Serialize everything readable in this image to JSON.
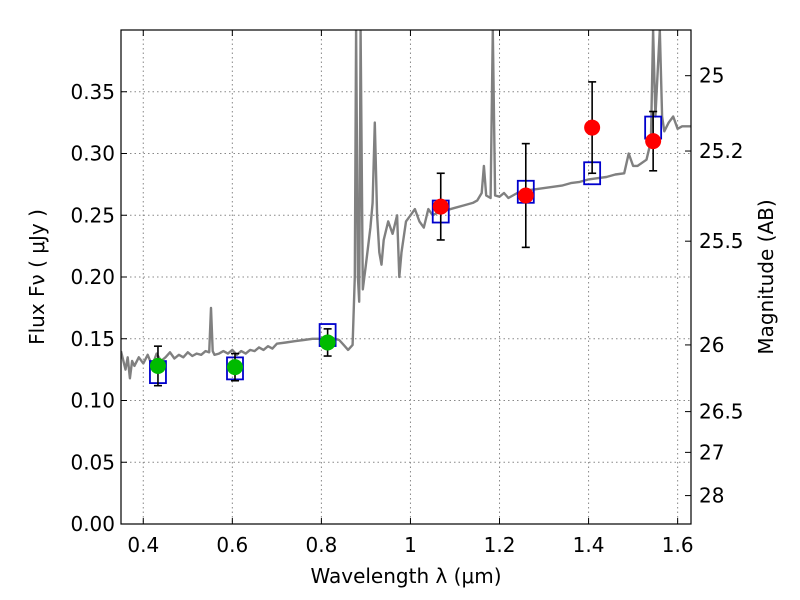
{
  "chart_data": {
    "type": "scatter",
    "xlabel": "Wavelength  λ (μm)",
    "ylabel_left": "Flux  Fν  ( μJy )",
    "ylabel_right": "Magnitude (AB)",
    "xlim": [
      0.35,
      1.63
    ],
    "ylim": [
      0.0,
      0.4
    ],
    "grid": true,
    "x_ticks": [
      0.4,
      0.6,
      0.8,
      1.0,
      1.2,
      1.4,
      1.6
    ],
    "x_tick_labels": [
      "0.4",
      "0.6",
      "0.8",
      "1",
      "1.2",
      "1.4",
      "1.6"
    ],
    "y_ticks": [
      0.0,
      0.05,
      0.1,
      0.15,
      0.2,
      0.25,
      0.3,
      0.35
    ],
    "y_tick_labels": [
      "0.00",
      "0.05",
      "0.10",
      "0.15",
      "0.20",
      "0.25",
      "0.30",
      "0.35"
    ],
    "right_ticks": [
      {
        "label": "25",
        "flux": 0.363
      },
      {
        "label": "25.2",
        "flux": 0.302
      },
      {
        "label": "25.5",
        "flux": 0.229
      },
      {
        "label": "26",
        "flux": 0.145
      },
      {
        "label": "26.5",
        "flux": 0.091
      },
      {
        "label": "27",
        "flux": 0.058
      },
      {
        "label": "28",
        "flux": 0.023
      }
    ],
    "colors": {
      "green": "#00bb00",
      "red": "#ff0000",
      "model_box": "#0000cc",
      "model_spectrum": "#808080",
      "errorbar": "#000000",
      "grid": "#888888"
    },
    "photometry_green": [
      {
        "x": 0.433,
        "y": 0.128,
        "yerr": 0.016
      },
      {
        "x": 0.606,
        "y": 0.127,
        "yerr": 0.011
      },
      {
        "x": 0.814,
        "y": 0.147,
        "yerr": 0.011
      }
    ],
    "photometry_red": [
      {
        "x": 1.068,
        "y": 0.257,
        "yerr": 0.027
      },
      {
        "x": 1.259,
        "y": 0.266,
        "yerr": 0.042
      },
      {
        "x": 1.408,
        "y": 0.321,
        "yerr": 0.037
      },
      {
        "x": 1.545,
        "y": 0.31,
        "yerr": 0.024
      }
    ],
    "model_boxes": [
      {
        "x": 0.433,
        "y": 0.123
      },
      {
        "x": 0.606,
        "y": 0.126
      },
      {
        "x": 0.814,
        "y": 0.153
      },
      {
        "x": 1.068,
        "y": 0.253
      },
      {
        "x": 1.259,
        "y": 0.269
      },
      {
        "x": 1.408,
        "y": 0.284
      },
      {
        "x": 1.545,
        "y": 0.321
      }
    ],
    "model_spectrum": [
      [
        0.35,
        0.14
      ],
      [
        0.36,
        0.125
      ],
      [
        0.365,
        0.135
      ],
      [
        0.37,
        0.118
      ],
      [
        0.375,
        0.132
      ],
      [
        0.38,
        0.128
      ],
      [
        0.39,
        0.135
      ],
      [
        0.4,
        0.13
      ],
      [
        0.41,
        0.137
      ],
      [
        0.42,
        0.128
      ],
      [
        0.43,
        0.138
      ],
      [
        0.44,
        0.132
      ],
      [
        0.45,
        0.135
      ],
      [
        0.46,
        0.139
      ],
      [
        0.47,
        0.134
      ],
      [
        0.48,
        0.137
      ],
      [
        0.49,
        0.135
      ],
      [
        0.5,
        0.139
      ],
      [
        0.51,
        0.136
      ],
      [
        0.52,
        0.138
      ],
      [
        0.53,
        0.137
      ],
      [
        0.54,
        0.14
      ],
      [
        0.548,
        0.139
      ],
      [
        0.552,
        0.175
      ],
      [
        0.556,
        0.14
      ],
      [
        0.56,
        0.137
      ],
      [
        0.57,
        0.138
      ],
      [
        0.58,
        0.14
      ],
      [
        0.59,
        0.138
      ],
      [
        0.6,
        0.141
      ],
      [
        0.61,
        0.137
      ],
      [
        0.62,
        0.14
      ],
      [
        0.63,
        0.138
      ],
      [
        0.64,
        0.141
      ],
      [
        0.65,
        0.14
      ],
      [
        0.66,
        0.143
      ],
      [
        0.67,
        0.141
      ],
      [
        0.68,
        0.144
      ],
      [
        0.69,
        0.142
      ],
      [
        0.7,
        0.146
      ],
      [
        0.72,
        0.147
      ],
      [
        0.74,
        0.148
      ],
      [
        0.76,
        0.149
      ],
      [
        0.78,
        0.15
      ],
      [
        0.8,
        0.15
      ],
      [
        0.82,
        0.151
      ],
      [
        0.84,
        0.149
      ],
      [
        0.85,
        0.145
      ],
      [
        0.86,
        0.141
      ],
      [
        0.87,
        0.145
      ],
      [
        0.875,
        0.2
      ],
      [
        0.878,
        0.4
      ],
      [
        0.882,
        0.2
      ],
      [
        0.885,
        0.18
      ],
      [
        0.888,
        0.4
      ],
      [
        0.893,
        0.19
      ],
      [
        0.9,
        0.21
      ],
      [
        0.91,
        0.24
      ],
      [
        0.915,
        0.26
      ],
      [
        0.92,
        0.325
      ],
      [
        0.925,
        0.25
      ],
      [
        0.93,
        0.22
      ],
      [
        0.935,
        0.21
      ],
      [
        0.94,
        0.23
      ],
      [
        0.95,
        0.245
      ],
      [
        0.96,
        0.235
      ],
      [
        0.97,
        0.25
      ],
      [
        0.975,
        0.2
      ],
      [
        0.98,
        0.22
      ],
      [
        0.99,
        0.245
      ],
      [
        1.0,
        0.25
      ],
      [
        1.01,
        0.255
      ],
      [
        1.02,
        0.245
      ],
      [
        1.03,
        0.24
      ],
      [
        1.04,
        0.255
      ],
      [
        1.05,
        0.25
      ],
      [
        1.06,
        0.252
      ],
      [
        1.08,
        0.254
      ],
      [
        1.1,
        0.256
      ],
      [
        1.12,
        0.258
      ],
      [
        1.14,
        0.26
      ],
      [
        1.15,
        0.262
      ],
      [
        1.16,
        0.268
      ],
      [
        1.165,
        0.29
      ],
      [
        1.17,
        0.266
      ],
      [
        1.18,
        0.264
      ],
      [
        1.185,
        0.4
      ],
      [
        1.19,
        0.266
      ],
      [
        1.2,
        0.265
      ],
      [
        1.21,
        0.268
      ],
      [
        1.22,
        0.264
      ],
      [
        1.24,
        0.268
      ],
      [
        1.26,
        0.27
      ],
      [
        1.28,
        0.271
      ],
      [
        1.3,
        0.272
      ],
      [
        1.32,
        0.273
      ],
      [
        1.34,
        0.274
      ],
      [
        1.36,
        0.276
      ],
      [
        1.38,
        0.277
      ],
      [
        1.4,
        0.279
      ],
      [
        1.42,
        0.28
      ],
      [
        1.44,
        0.281
      ],
      [
        1.46,
        0.283
      ],
      [
        1.48,
        0.284
      ],
      [
        1.49,
        0.3
      ],
      [
        1.5,
        0.29
      ],
      [
        1.51,
        0.29
      ],
      [
        1.53,
        0.295
      ],
      [
        1.54,
        0.31
      ],
      [
        1.545,
        0.4
      ],
      [
        1.55,
        0.33
      ],
      [
        1.56,
        0.4
      ],
      [
        1.565,
        0.33
      ],
      [
        1.57,
        0.318
      ],
      [
        1.58,
        0.325
      ],
      [
        1.59,
        0.33
      ],
      [
        1.6,
        0.32
      ],
      [
        1.61,
        0.322
      ],
      [
        1.63,
        0.322
      ]
    ]
  }
}
